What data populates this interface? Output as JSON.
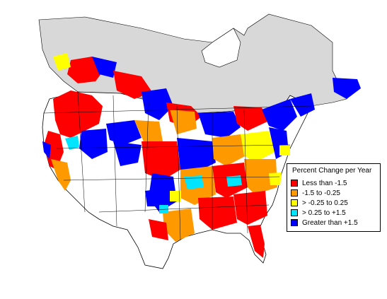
{
  "colors": {
    "canada": "#d8d8d8",
    "land": "#ffffff",
    "water": "#ffffff",
    "border": "#000000"
  },
  "legend": {
    "title": "Percent Change per Year",
    "items": [
      {
        "label": "Less than -1.5",
        "color": "#ff0000"
      },
      {
        "label": "-1.5 to -0.25",
        "color": "#ff9900"
      },
      {
        "label": "> -0.25 to 0.25",
        "color": "#ffff00"
      },
      {
        "label": "> 0.25 to +1.5",
        "color": "#00e5ff"
      },
      {
        "label": "Greater than +1.5",
        "color": "#0000ff"
      }
    ]
  }
}
